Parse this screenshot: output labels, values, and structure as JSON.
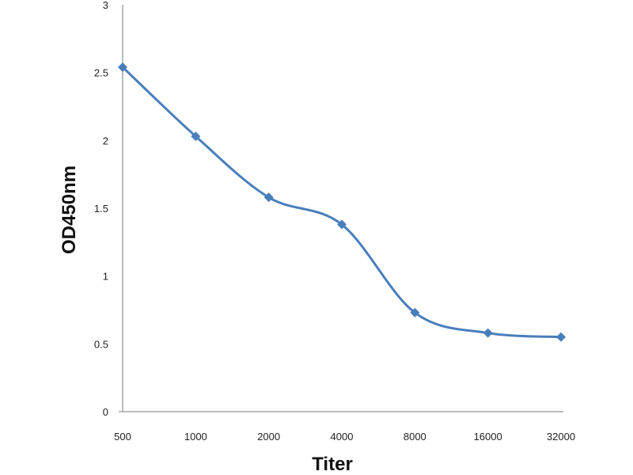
{
  "chart_data": {
    "type": "line",
    "title": "",
    "xlabel": "Titer",
    "ylabel": "OD450nm",
    "categories": [
      "500",
      "1000",
      "2000",
      "4000",
      "8000",
      "16000",
      "32000"
    ],
    "series": [
      {
        "values": [
          2.54,
          2.03,
          1.58,
          1.38,
          0.73,
          0.58,
          0.55
        ]
      }
    ],
    "ylim": [
      0,
      3
    ],
    "yticks": [
      "0",
      "0.5",
      "1",
      "1.5",
      "2",
      "2.5",
      "3"
    ],
    "grid": false,
    "smooth": true,
    "marker": "diamond",
    "color": "#4A7EBB"
  }
}
